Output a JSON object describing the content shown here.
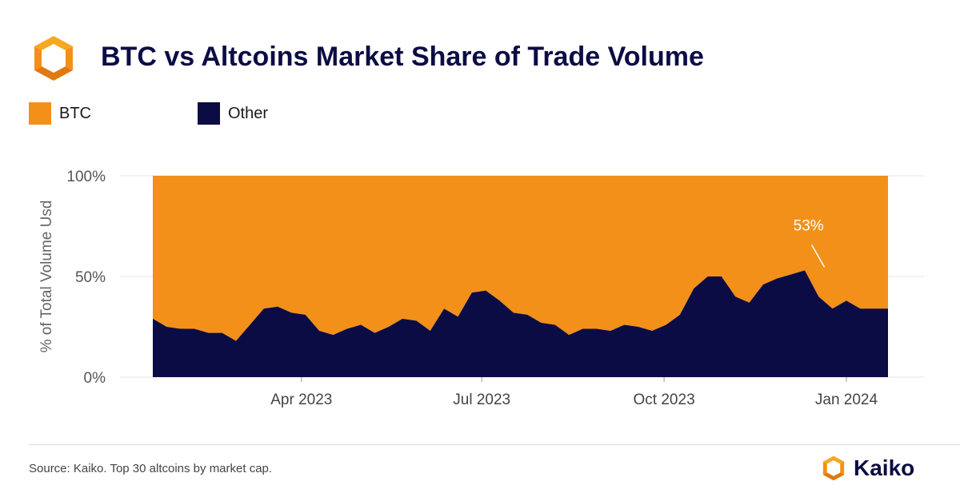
{
  "header": {
    "title": "BTC vs Altcoins Market Share of Trade Volume",
    "logo_icon": "kaiko-logo-icon"
  },
  "legend": {
    "items": [
      {
        "label": "BTC",
        "color": "#f39019"
      },
      {
        "label": "Other",
        "color": "#0c0c45"
      }
    ]
  },
  "chart_data": {
    "type": "area",
    "stacked": true,
    "percent": true,
    "title": "BTC vs Altcoins Market Share of Trade Volume",
    "xlabel": "",
    "ylabel": "% of Total Volume Usd",
    "ylim": [
      0,
      100
    ],
    "yticks": [
      "0%",
      "50%",
      "100%"
    ],
    "xticks": [
      {
        "date": "2023-04-01",
        "label": "Apr 2023"
      },
      {
        "date": "2023-07-01",
        "label": "Jul 2023"
      },
      {
        "date": "2023-10-01",
        "label": "Oct 2023"
      },
      {
        "date": "2024-01-01",
        "label": "Jan 2024"
      }
    ],
    "x": [
      "2023-01-16",
      "2023-01-23",
      "2023-01-30",
      "2023-02-06",
      "2023-02-13",
      "2023-02-20",
      "2023-02-27",
      "2023-03-06",
      "2023-03-13",
      "2023-03-20",
      "2023-03-27",
      "2023-04-03",
      "2023-04-10",
      "2023-04-17",
      "2023-04-24",
      "2023-05-01",
      "2023-05-08",
      "2023-05-15",
      "2023-05-22",
      "2023-05-29",
      "2023-06-05",
      "2023-06-12",
      "2023-06-19",
      "2023-06-26",
      "2023-07-03",
      "2023-07-10",
      "2023-07-17",
      "2023-07-24",
      "2023-07-31",
      "2023-08-07",
      "2023-08-14",
      "2023-08-21",
      "2023-08-28",
      "2023-09-04",
      "2023-09-11",
      "2023-09-18",
      "2023-09-25",
      "2023-10-02",
      "2023-10-09",
      "2023-10-16",
      "2023-10-23",
      "2023-10-30",
      "2023-11-06",
      "2023-11-13",
      "2023-11-20",
      "2023-11-27",
      "2023-12-04",
      "2023-12-11",
      "2023-12-18",
      "2023-12-25",
      "2024-01-01",
      "2024-01-08",
      "2024-01-15",
      "2024-01-22"
    ],
    "series": [
      {
        "name": "Other",
        "color": "#0c0c45",
        "values": [
          29,
          25,
          24,
          24,
          22,
          22,
          18,
          26,
          34,
          35,
          32,
          31,
          23,
          21,
          24,
          26,
          22,
          25,
          29,
          28,
          23,
          34,
          30,
          42,
          43,
          38,
          32,
          31,
          27,
          26,
          21,
          24,
          24,
          23,
          26,
          25,
          23,
          26,
          31,
          44,
          50,
          50,
          40,
          37,
          46,
          49,
          51,
          53,
          40,
          34,
          38,
          34,
          34,
          34
        ]
      },
      {
        "name": "BTC",
        "color": "#f39019",
        "values": [
          71,
          75,
          76,
          76,
          78,
          78,
          82,
          74,
          66,
          65,
          68,
          69,
          77,
          79,
          76,
          74,
          78,
          75,
          71,
          72,
          77,
          66,
          70,
          58,
          57,
          62,
          68,
          69,
          73,
          74,
          79,
          76,
          76,
          77,
          74,
          75,
          77,
          74,
          69,
          56,
          50,
          50,
          60,
          63,
          54,
          51,
          49,
          47,
          60,
          66,
          62,
          66,
          66,
          66
        ]
      }
    ],
    "annotations": [
      {
        "text": "53%",
        "x": "2023-12-25",
        "y": 53
      }
    ],
    "grid": true,
    "legend_position": "top-left"
  },
  "footer": {
    "source": "Source: Kaiko. Top 30 altcoins by market cap.",
    "brand": "Kaiko"
  }
}
